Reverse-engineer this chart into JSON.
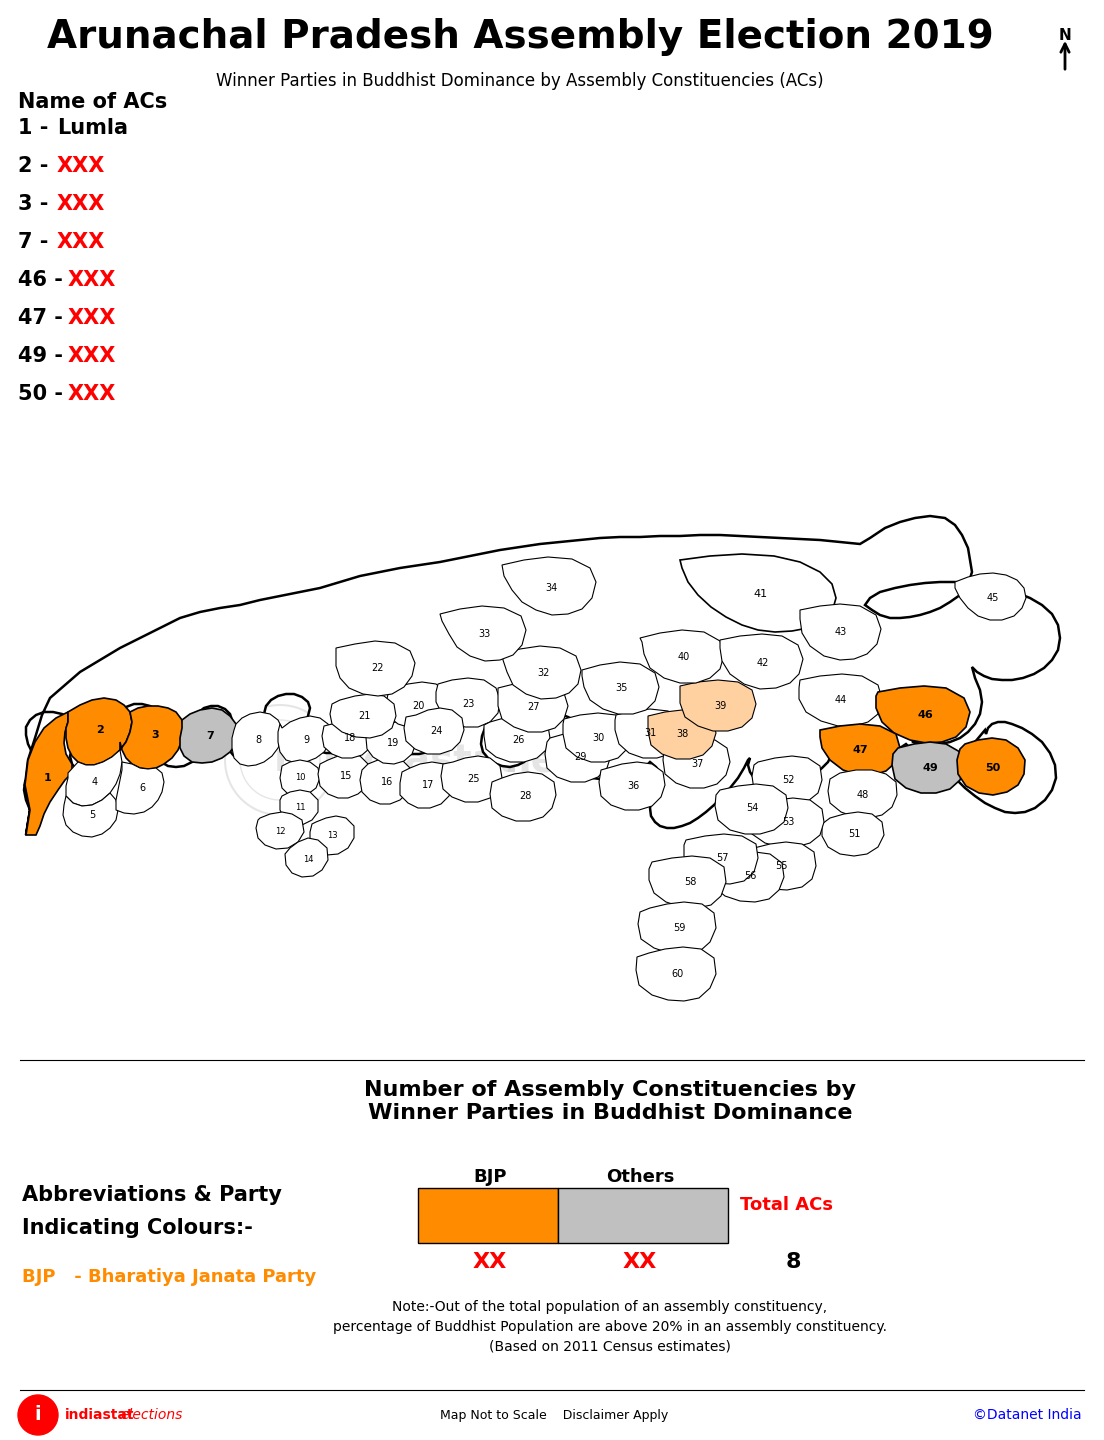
{
  "title": "Arunachal Pradesh Assembly Election 2019",
  "subtitle": "Winner Parties in Buddhist Dominance by Assembly Constituencies (ACs)",
  "name_of_acs_label": "Name of ACs",
  "ac_list": [
    {
      "num": "1",
      "name": "Lumla",
      "name_color": "black"
    },
    {
      "num": "2",
      "name": "XXX",
      "name_color": "red"
    },
    {
      "num": "3",
      "name": "XXX",
      "name_color": "red"
    },
    {
      "num": "7",
      "name": "XXX",
      "name_color": "red"
    },
    {
      "num": "46",
      "name": "XXX",
      "name_color": "red"
    },
    {
      "num": "47",
      "name": "XXX",
      "name_color": "red"
    },
    {
      "num": "49",
      "name": "XXX",
      "name_color": "red"
    },
    {
      "num": "50",
      "name": "XXX",
      "name_color": "red"
    }
  ],
  "bottom_chart_title": "Number of Assembly Constituencies by\nWinner Parties in Buddhist Dominance",
  "abbrev_title_line1": "Abbreviations & Party",
  "abbrev_title_line2": "Indicating Colours:-",
  "abbrev_bjp": "BJP   - Bharatiya Janata Party",
  "abbrev_bjp_color": "#FF8C00",
  "bjp_label": "BJP",
  "others_label": "Others",
  "total_acs_label": "Total ACs",
  "bjp_value": "XX",
  "others_value": "XX",
  "total_value": "8",
  "bjp_bar_color": "#FF8C00",
  "others_bar_color": "#C0C0C0",
  "note_text_line1": "Note:-Out of the total population of an assembly constituency,",
  "note_text_line2": "percentage of Buddhist Population are above 20% in an assembly constituency.",
  "note_text_line3": "(Based on 2011 Census estimates)",
  "footer_left_bold": "indiastat",
  "footer_left_italic": "elections",
  "footer_mid": "Map Not to Scale    Disclaimer Apply",
  "footer_right": "©Datanet India",
  "bg_color": "#FFFFFF",
  "map_bg": "#FFFFFF",
  "border_color": "#000000",
  "text_color_black": "#000000",
  "text_color_red": "#FF0000",
  "watermark_color": "#C0C0C0",
  "orange": "#FF8C00",
  "gray_constituency": "#C0C0C0",
  "light_orange": "#FFD0A0"
}
